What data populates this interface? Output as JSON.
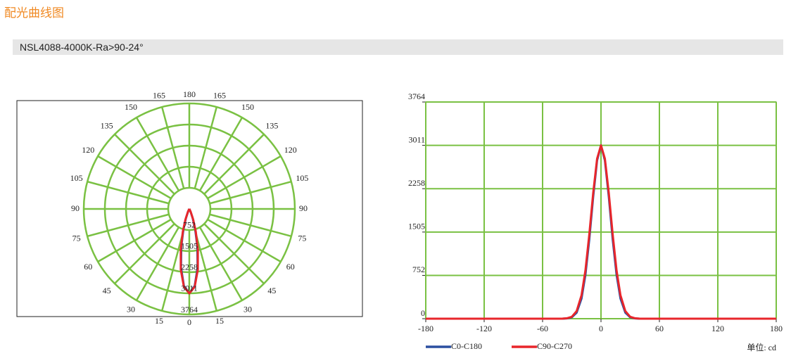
{
  "header": {
    "title": "配光曲线图",
    "model": "NSL4088-4000K-Ra>90-24°"
  },
  "unit_note": "单位: cd",
  "chart_data": [
    {
      "type": "polar",
      "angles": [
        -180,
        -90,
        -60,
        -50,
        -40,
        -35,
        -30,
        -25,
        -20,
        -16,
        -12,
        -8,
        -4,
        0,
        4,
        8,
        12,
        16,
        20,
        25,
        30,
        35,
        40,
        50,
        60,
        90,
        180
      ],
      "series": [
        {
          "color": "#2b4fa0",
          "values": [
            0,
            0,
            0,
            0,
            0,
            4,
            24,
            105,
            350,
            760,
            1380,
            2120,
            2750,
            3011,
            2750,
            2120,
            1380,
            760,
            350,
            105,
            24,
            4,
            0,
            0,
            0,
            0,
            0
          ]
        },
        {
          "color": "#e8262b",
          "values": [
            0,
            0,
            0,
            0,
            0,
            7,
            33,
            132,
            407,
            837,
            1466,
            2186,
            2780,
            3011,
            2780,
            2186,
            1466,
            837,
            407,
            132,
            33,
            7,
            0,
            0,
            0,
            0,
            0
          ]
        }
      ],
      "rlim": [
        0,
        3764
      ],
      "rticks": [
        752,
        1505,
        2258,
        3011,
        3764
      ],
      "angle_ticks": [
        0,
        15,
        30,
        45,
        60,
        75,
        90,
        105,
        120,
        135,
        150,
        165,
        180
      ]
    },
    {
      "type": "line",
      "x": [
        -180,
        -90,
        -60,
        -50,
        -40,
        -35,
        -30,
        -25,
        -20,
        -16,
        -12,
        -8,
        -4,
        0,
        4,
        8,
        12,
        16,
        20,
        25,
        30,
        35,
        40,
        50,
        60,
        90,
        180
      ],
      "series": [
        {
          "name": "C0-C180",
          "color": "#2b4fa0",
          "values": [
            0,
            0,
            0,
            0,
            0,
            4,
            24,
            105,
            350,
            760,
            1380,
            2120,
            2750,
            3011,
            2750,
            2120,
            1380,
            760,
            350,
            105,
            24,
            4,
            0,
            0,
            0,
            0,
            0
          ]
        },
        {
          "name": "C90-C270",
          "color": "#e8262b",
          "values": [
            0,
            0,
            0,
            0,
            0,
            7,
            33,
            132,
            407,
            837,
            1466,
            2186,
            2780,
            3011,
            2780,
            2186,
            1466,
            837,
            407,
            132,
            33,
            7,
            0,
            0,
            0,
            0,
            0
          ]
        }
      ],
      "xlim": [
        -180,
        180
      ],
      "xticks": [
        -180,
        -120,
        -60,
        0,
        60,
        120,
        180
      ],
      "ylim": [
        0,
        3764
      ],
      "yticks": [
        0,
        752,
        1505,
        2258,
        3011,
        3764
      ],
      "grid": true
    }
  ]
}
